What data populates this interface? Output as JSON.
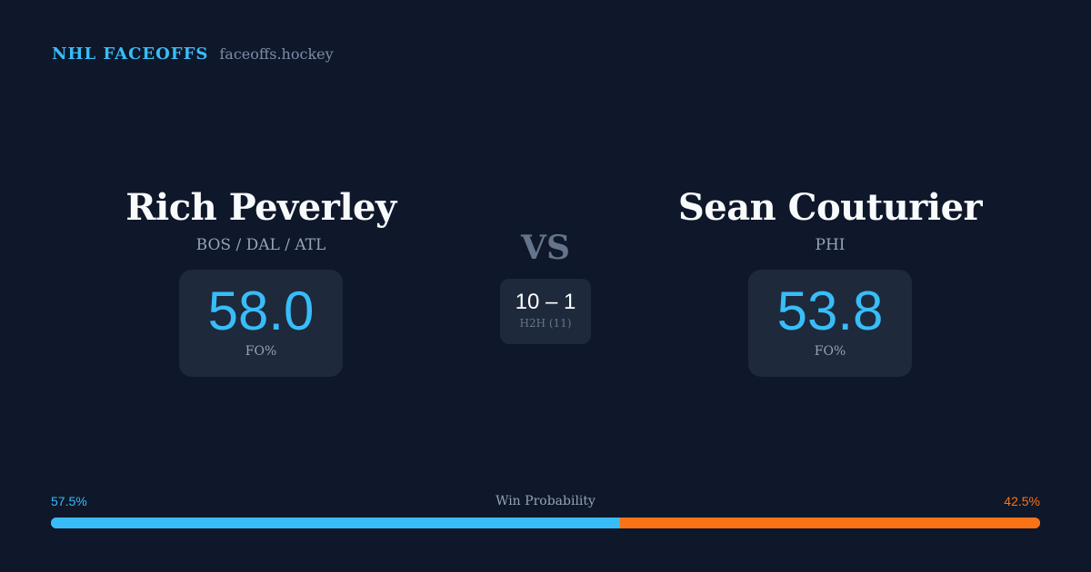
{
  "brand": {
    "title": "NHL FACEOFFS",
    "url": "faceoffs.hockey"
  },
  "player1": {
    "name": "Rich Peverley",
    "teams": "BOS / DAL / ATL",
    "fo_pct": "58.0",
    "fo_label": "FO%"
  },
  "player2": {
    "name": "Sean Couturier",
    "teams": "PHI",
    "fo_pct": "53.8",
    "fo_label": "FO%"
  },
  "vs": "VS",
  "h2h": {
    "score": "10 – 1",
    "label": "H2H (11)"
  },
  "win_probability": {
    "label": "Win Probability",
    "p1": "57.5%",
    "p2": "42.5%",
    "p1_value": 57.5,
    "p1_color": "#38bdf8",
    "p2_color": "#f97316"
  }
}
